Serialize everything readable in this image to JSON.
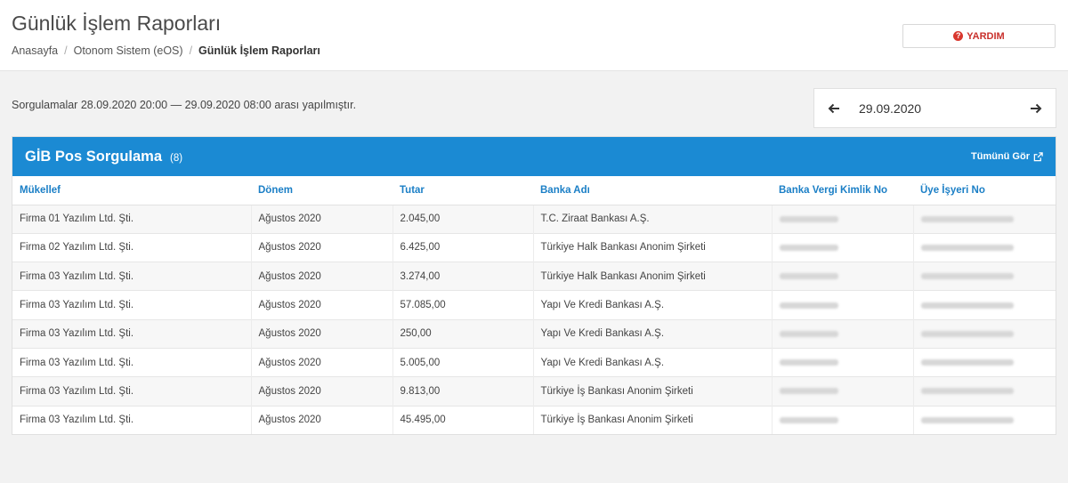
{
  "header": {
    "title": "Günlük İşlem Raporları",
    "breadcrumb": [
      "Anasayfa",
      "Otonom Sistem (eOS)",
      "Günlük İşlem Raporları"
    ],
    "help_label": "YARDIM"
  },
  "query": {
    "range_text": "Sorgulamalar 28.09.2020 20:00 — 29.09.2020 08:00 arası yapılmıştır.",
    "date": "29.09.2020"
  },
  "panel": {
    "title": "GİB Pos Sorgulama",
    "count": "(8)",
    "view_all": "Tümünü Gör",
    "columns": [
      "Mükellef",
      "Dönem",
      "Tutar",
      "Banka Adı",
      "Banka Vergi Kimlik No",
      "Üye İşyeri No"
    ],
    "rows": [
      {
        "mukellef": "Firma 01 Yazılım Ltd. Şti.",
        "donem": "Ağustos 2020",
        "tutar": "2.045,00",
        "banka": "T.C. Ziraat Bankası A.Ş."
      },
      {
        "mukellef": "Firma 02 Yazılım Ltd. Şti.",
        "donem": "Ağustos 2020",
        "tutar": "6.425,00",
        "banka": "Türkiye Halk Bankası Anonim Şirketi"
      },
      {
        "mukellef": "Firma 03 Yazılım Ltd. Şti.",
        "donem": "Ağustos 2020",
        "tutar": "3.274,00",
        "banka": "Türkiye Halk Bankası Anonim Şirketi"
      },
      {
        "mukellef": "Firma 03 Yazılım Ltd. Şti.",
        "donem": "Ağustos 2020",
        "tutar": "57.085,00",
        "banka": "Yapı Ve Kredi Bankası A.Ş."
      },
      {
        "mukellef": "Firma 03 Yazılım Ltd. Şti.",
        "donem": "Ağustos 2020",
        "tutar": "250,00",
        "banka": "Yapı Ve Kredi Bankası A.Ş."
      },
      {
        "mukellef": "Firma 03 Yazılım Ltd. Şti.",
        "donem": "Ağustos 2020",
        "tutar": "5.005,00",
        "banka": "Yapı Ve Kredi Bankası A.Ş."
      },
      {
        "mukellef": "Firma 03 Yazılım Ltd. Şti.",
        "donem": "Ağustos 2020",
        "tutar": "9.813,00",
        "banka": "Türkiye İş Bankası Anonim Şirketi"
      },
      {
        "mukellef": "Firma 03 Yazılım Ltd. Şti.",
        "donem": "Ağustos 2020",
        "tutar": "45.495,00",
        "banka": "Türkiye İş Bankası Anonim Şirketi"
      }
    ]
  },
  "colors": {
    "accent": "#1b8ad3",
    "help": "#c9302c"
  },
  "icons": {
    "help": "question-circle-icon",
    "prev": "arrow-left-icon",
    "next": "arrow-right-icon",
    "external": "external-link-icon"
  }
}
